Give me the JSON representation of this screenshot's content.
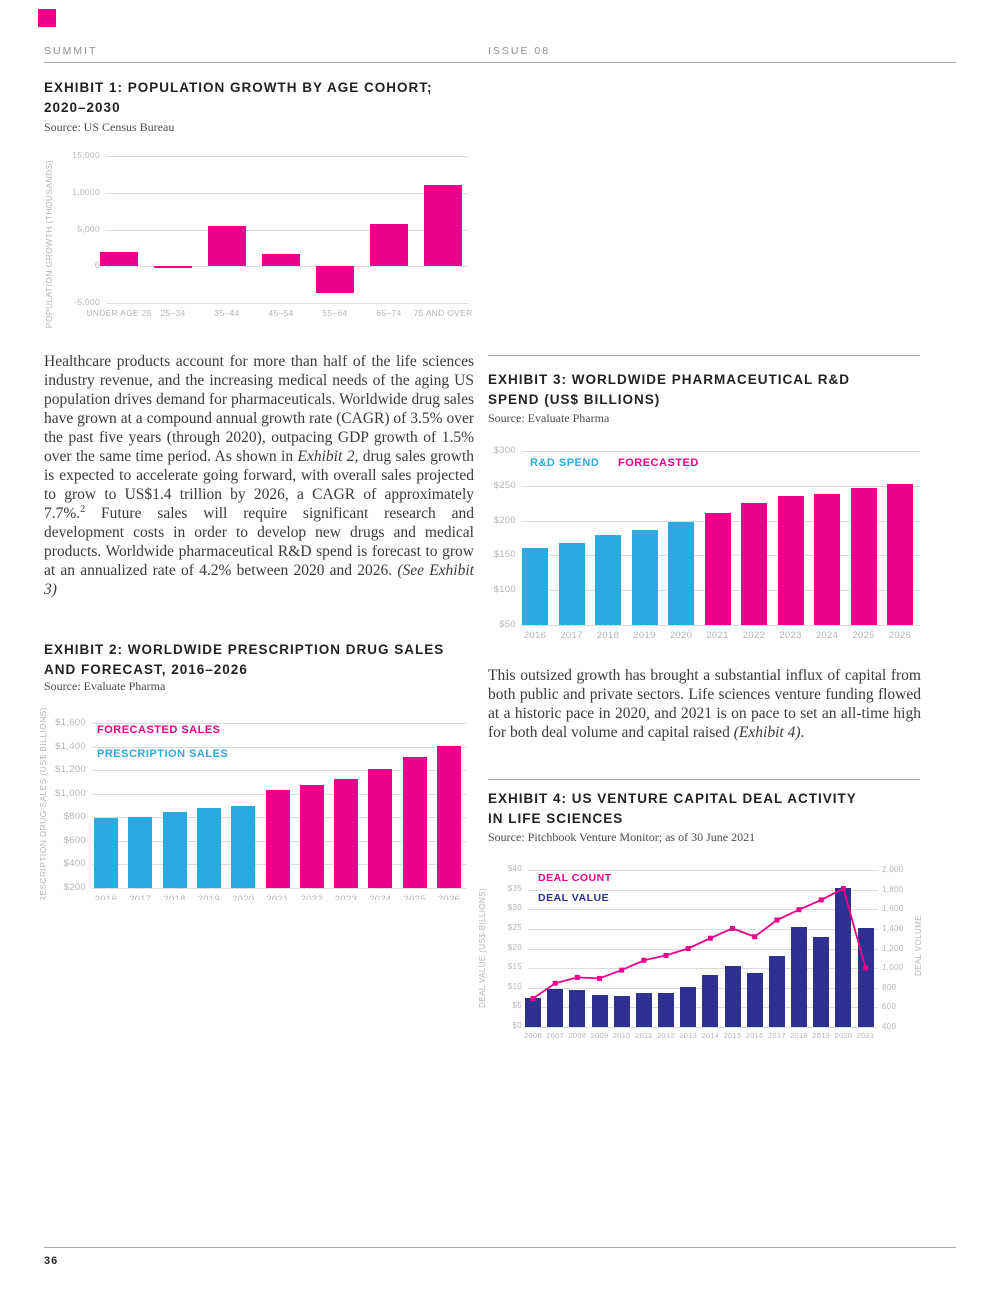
{
  "page": {
    "header_left": "SUMMIT",
    "header_right": "ISSUE 08",
    "page_number": "36",
    "accent_color": "#EC008C"
  },
  "exhibits": {
    "e1": {
      "title_lines": [
        "EXHIBIT 1: POPULATION GROWTH BY AGE COHORT;",
        "2020–2030"
      ],
      "source": "Source: US Census Bureau"
    },
    "e2": {
      "title_lines": [
        "EXHIBIT 2: WORLDWIDE PRESCRIPTION DRUG SALES",
        "AND FORECAST, 2016–2026"
      ],
      "source": "Source: Evaluate Pharma"
    },
    "e3": {
      "title_lines": [
        "EXHIBIT 3: WORLDWIDE PHARMACEUTICAL R&D",
        "SPEND (US$ BILLIONS)"
      ],
      "source": "Source: Evaluate Pharma"
    },
    "e4": {
      "title_lines": [
        "EXHIBIT 4: US VENTURE CAPITAL DEAL ACTIVITY",
        "IN LIFE SCIENCES"
      ],
      "source": "Source: Pitchbook Venture Monitor; as of 30 June 2021"
    }
  },
  "paragraphs": {
    "p1": [
      {
        "text": "Healthcare products account for more than half of the life sciences industry revenue, and the increasing medical needs of the aging US population drives demand for pharmaceuticals. Worldwide drug sales have grown at a compound annual growth rate (CAGR) of 3.5% over the past five years (through 2020), outpacing GDP growth of 1.5% over the same time period. As shown in "
      },
      {
        "text": "Exhibit 2",
        "italic": true
      },
      {
        "text": ", drug sales growth is expected to accelerate going forward, with overall sales projected to grow to US$1.4 trillion by 2026, a CAGR of approximately 7.7%."
      },
      {
        "text": "2",
        "sup": true
      },
      {
        "text": " Future sales will require significant research and development costs in order to develop new drugs and medical products. Worldwide pharmaceutical R&D spend is forecast to grow at an annualized rate of 4.2% between 2020 and 2026. "
      },
      {
        "text": "(See Exhibit 3)",
        "italic": true
      }
    ],
    "p2": [
      {
        "text": "This outsized growth has brought a substantial influx of capital from both public and private sectors. Life sciences venture funding flowed at a historic pace in 2020, and 2021 is on pace to set an all-time high for both deal volume and capital raised "
      },
      {
        "text": "(Exhibit 4)",
        "italic": true
      },
      {
        "text": "."
      }
    ]
  },
  "chart_data": [
    {
      "id": "e1",
      "type": "bar",
      "title": "EXHIBIT 1: POPULATION GROWTH BY AGE COHORT; 2020–2030",
      "ylabel": "POPULATION GROWTH (THOUSANDS)",
      "categories": [
        "UNDER AGE 25",
        "25–34",
        "35–44",
        "45–54",
        "55–64",
        "65–74",
        "75 AND OVER"
      ],
      "values": [
        1900,
        -150,
        5500,
        1600,
        -3700,
        5800,
        11100
      ],
      "ylim": [
        -5000,
        15000
      ],
      "baseline": 0,
      "grid": true,
      "bar_color": "#EC008C",
      "yticks": [
        {
          "v": 15000,
          "label": "15,000"
        },
        {
          "v": 10000,
          "label": "1,0000"
        },
        {
          "v": 5000,
          "label": "5,000"
        },
        {
          "v": 0,
          "label": "0"
        },
        {
          "v": -5000,
          "label": "-5,000"
        }
      ]
    },
    {
      "id": "e2",
      "type": "bar",
      "title": "EXHIBIT 2: WORLDWIDE PRESCRIPTION DRUG SALES AND FORECAST, 2016–2026",
      "ylabel": "PRESCRIPTION DRUG SALES (US$ BILLIONS)",
      "ylabel_clipped": true,
      "categories": [
        "2016",
        "2017",
        "2018",
        "2019",
        "2020",
        "2021",
        "2022",
        "2023",
        "2024",
        "2025",
        "2026"
      ],
      "values": [
        790,
        805,
        845,
        875,
        900,
        1030,
        1070,
        1125,
        1210,
        1310,
        1405
      ],
      "split_index": 5,
      "color_actual": "#29ABE2",
      "color_forecast": "#EC008C",
      "ylim": [
        200,
        1600
      ],
      "baseline": 200,
      "grid": true,
      "xlabels_clipped": true,
      "legend": [
        {
          "label": "FORECASTED SALES",
          "color": "#EC008C"
        },
        {
          "label": "PRESCRIPTION SALES",
          "color": "#29ABE2"
        }
      ],
      "yticks": [
        {
          "v": 1600,
          "label": "$1,600"
        },
        {
          "v": 1400,
          "label": "$1,400"
        },
        {
          "v": 1200,
          "label": "$1,200"
        },
        {
          "v": 1000,
          "label": "$1,000"
        },
        {
          "v": 800,
          "label": "$800"
        },
        {
          "v": 600,
          "label": "$600"
        },
        {
          "v": 400,
          "label": "$400"
        },
        {
          "v": 200,
          "label": "$200"
        }
      ]
    },
    {
      "id": "e3",
      "type": "bar",
      "title": "EXHIBIT 3: WORLDWIDE PHARMACEUTICAL R&D SPEND (US$ BILLIONS)",
      "categories": [
        "2016",
        "2017",
        "2018",
        "2019",
        "2020",
        "2021",
        "2022",
        "2023",
        "2024",
        "2025",
        "2026"
      ],
      "values": [
        160,
        168,
        179,
        186,
        198,
        211,
        225,
        236,
        238,
        247,
        253
      ],
      "split_index": 5,
      "color_actual": "#29ABE2",
      "color_forecast": "#EC008C",
      "ylim": [
        50,
        300
      ],
      "baseline": 50,
      "grid": true,
      "legend": [
        {
          "label": "R&D SPEND",
          "color": "#29ABE2"
        },
        {
          "label": "FORECASTED",
          "color": "#EC008C"
        }
      ],
      "yticks": [
        {
          "v": 300,
          "label": "$300"
        },
        {
          "v": 250,
          "label": "$250"
        },
        {
          "v": 200,
          "label": "$200"
        },
        {
          "v": 150,
          "label": "$150"
        },
        {
          "v": 100,
          "label": "$100"
        },
        {
          "v": 50,
          "label": "$50"
        }
      ]
    },
    {
      "id": "e4",
      "type": "bar+line",
      "title": "EXHIBIT 4: US VENTURE CAPITAL DEAL ACTIVITY IN LIFE SCIENCES",
      "ylabel_left": "DEAL VALUE (US$ BILLIONS)",
      "ylabel_right": "DEAL VOLUME",
      "categories": [
        "2006",
        "2007",
        "2008",
        "2009",
        "2010",
        "2011",
        "2012",
        "2013",
        "2014",
        "2015",
        "2016",
        "2017",
        "2018",
        "2019",
        "2020",
        "2021"
      ],
      "series": [
        {
          "name": "DEAL VALUE",
          "type": "bar",
          "axis": "left",
          "color": "#2E3192",
          "values": [
            7.5,
            9.6,
            9.3,
            8.1,
            7.8,
            8.7,
            8.7,
            10.3,
            13.2,
            15.6,
            13.8,
            18.0,
            25.5,
            23.0,
            35.5,
            25.2
          ]
        },
        {
          "name": "DEAL COUNT",
          "type": "line",
          "axis": "right",
          "color": "#EC008C",
          "values": [
            690,
            845,
            905,
            895,
            980,
            1080,
            1130,
            1200,
            1305,
            1405,
            1320,
            1490,
            1595,
            1695,
            1810,
            1000
          ]
        }
      ],
      "ylim_left": [
        0,
        40
      ],
      "ylim_right": [
        400,
        2000
      ],
      "grid": true,
      "legend": [
        {
          "label": "DEAL COUNT",
          "color": "#EC008C"
        },
        {
          "label": "DEAL VALUE",
          "color": "#2E3192"
        }
      ],
      "yticks": [
        {
          "v": 40,
          "label": "$40"
        },
        {
          "v": 35,
          "label": "$35"
        },
        {
          "v": 30,
          "label": "$30"
        },
        {
          "v": 25,
          "label": "$25"
        },
        {
          "v": 20,
          "label": "$20"
        },
        {
          "v": 15,
          "label": "$15"
        },
        {
          "v": 10,
          "label": "$10"
        },
        {
          "v": 5,
          "label": "$5"
        },
        {
          "v": 0,
          "label": "$0"
        }
      ],
      "yticks_right": [
        {
          "v": 2000,
          "label": "2,000"
        },
        {
          "v": 1800,
          "label": "1,800"
        },
        {
          "v": 1600,
          "label": "1,600"
        },
        {
          "v": 1400,
          "label": "1,400"
        },
        {
          "v": 1200,
          "label": "1,200"
        },
        {
          "v": 1000,
          "label": "1,000"
        },
        {
          "v": 800,
          "label": "800"
        },
        {
          "v": 600,
          "label": "600"
        },
        {
          "v": 400,
          "label": "400"
        }
      ]
    }
  ]
}
